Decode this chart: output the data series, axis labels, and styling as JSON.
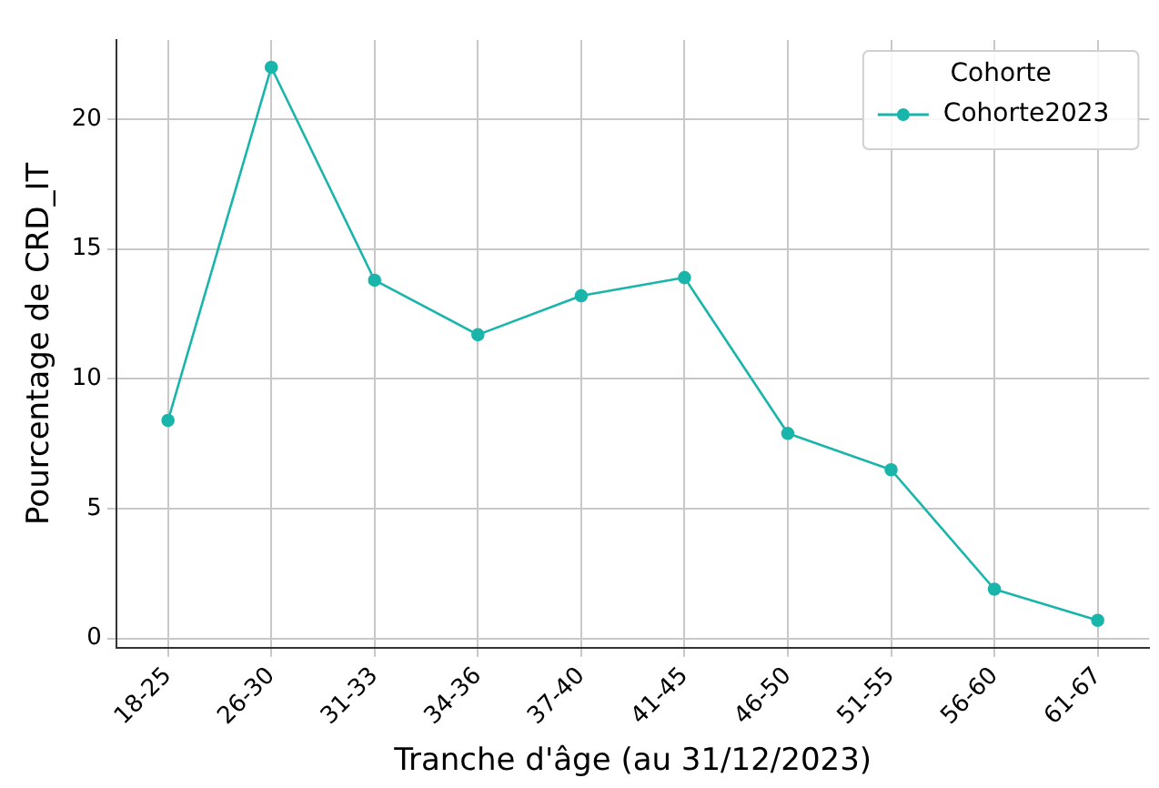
{
  "chart_data": {
    "type": "line",
    "xlabel": "Tranche d'âge (au 31/12/2023)",
    "ylabel": "Pourcentage de CRD_IT",
    "legend_title": "Cohorte",
    "categories": [
      "18-25",
      "26-30",
      "31-33",
      "34-36",
      "37-40",
      "41-45",
      "46-50",
      "51-55",
      "56-60",
      "61-67"
    ],
    "series": [
      {
        "name": "Cohorte2023",
        "color": "#1ab5aa",
        "values": [
          8.4,
          22.0,
          13.8,
          11.7,
          13.2,
          13.9,
          7.9,
          6.5,
          1.9,
          0.7
        ]
      }
    ],
    "ylim": [
      -0.35,
      23.05
    ],
    "yticks": [
      0,
      5,
      10,
      15,
      20
    ],
    "grid": true,
    "legend": "top right",
    "marker": "circle",
    "line_style": "solid"
  }
}
